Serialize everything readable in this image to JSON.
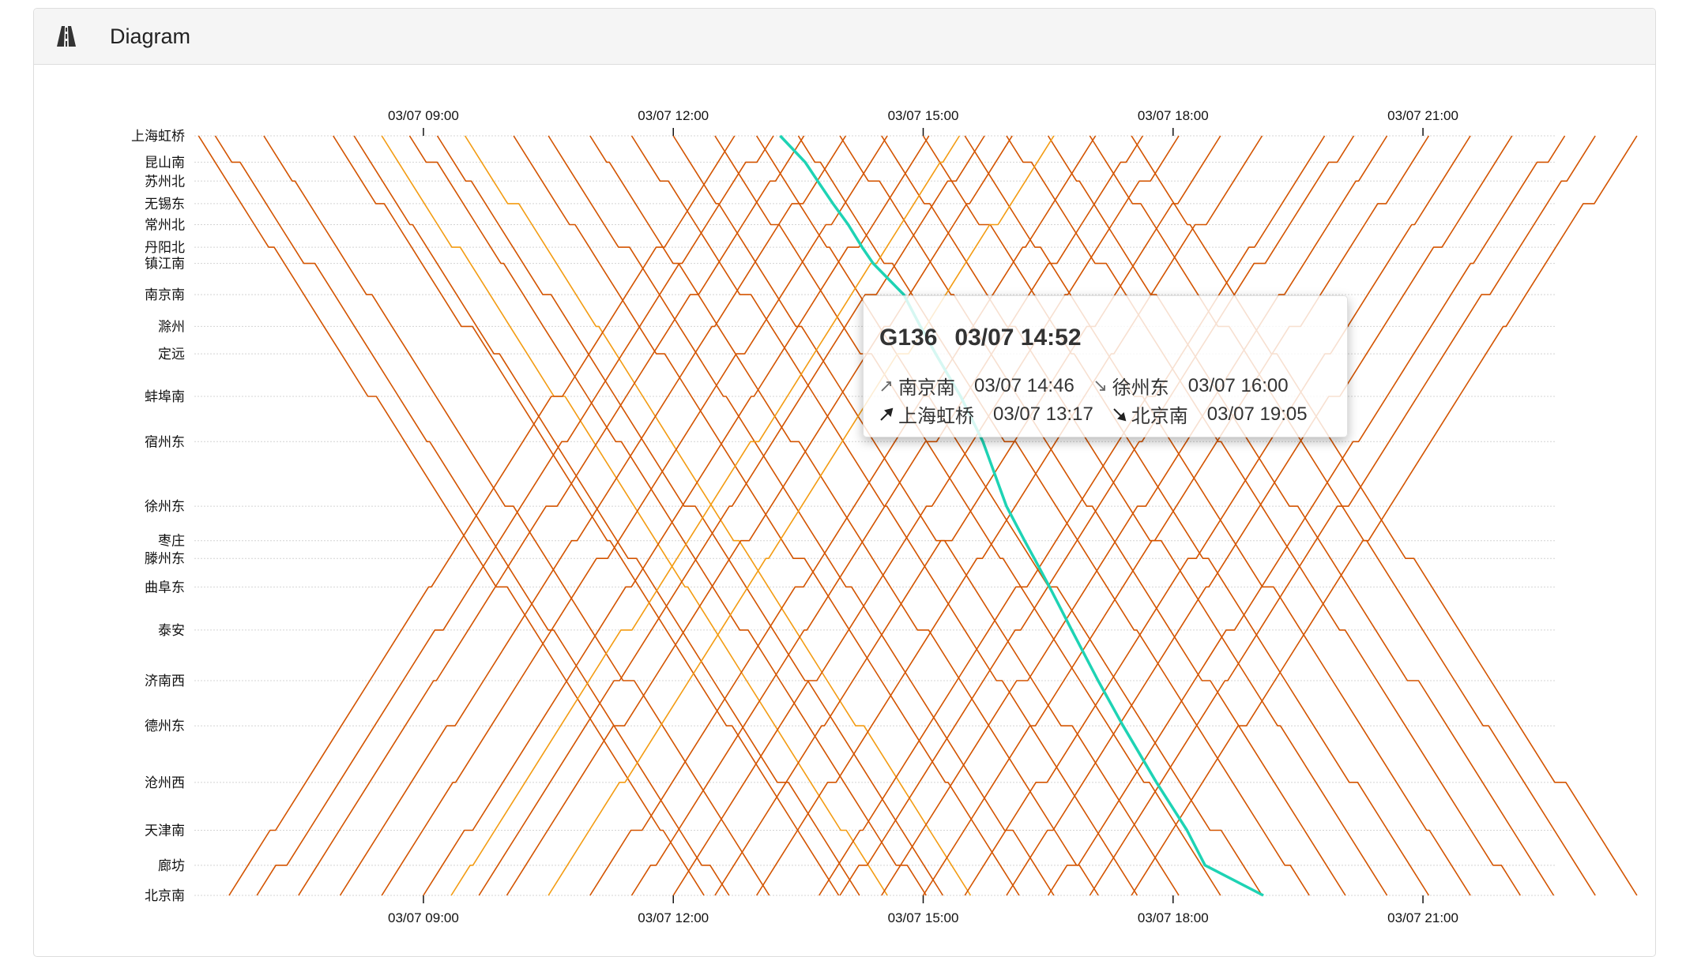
{
  "panel": {
    "title": "Diagram",
    "icon": "road-icon"
  },
  "tooltip": {
    "train": "G136",
    "time": "03/07 14:52",
    "prev_station": "南京南",
    "prev_time": "03/07 14:46",
    "next_station": "徐州东",
    "next_time": "03/07 16:00",
    "origin_station": "上海虹桥",
    "origin_time": "03/07 13:17",
    "dest_station": "北京南",
    "dest_time": "03/07 19:05"
  },
  "chart_data": {
    "type": "line",
    "subtype": "train timetable diagram",
    "time_range": [
      "03/07 06:15",
      "03/07 22:35"
    ],
    "x_ticks": [
      "03/07 09:00",
      "03/07 12:00",
      "03/07 15:00",
      "03/07 18:00",
      "03/07 21:00"
    ],
    "x_tick_hours": [
      9,
      12,
      15,
      18,
      21
    ],
    "stations": [
      "上海虹桥",
      "昆山南",
      "苏州北",
      "无锡东",
      "常州北",
      "丹阳北",
      "镇江南",
      "南京南",
      "滁州",
      "定远",
      "蚌埠南",
      "宿州东",
      "徐州东",
      "枣庄",
      "滕州东",
      "曲阜东",
      "泰安",
      "济南西",
      "德州东",
      "沧州西",
      "天津南",
      "廊坊",
      "北京南"
    ],
    "station_km": [
      0,
      49,
      84,
      126,
      165,
      207,
      237,
      295,
      354,
      405,
      484,
      568,
      688,
      752,
      785,
      838,
      918,
      1012,
      1096,
      1201,
      1290,
      1355,
      1411
    ],
    "grid": true,
    "colors": {
      "normal": "#d35400",
      "alt": "#f39c12",
      "highlight": "#1ed3b4"
    },
    "highlighted_train": {
      "name": "G136",
      "direction": "northbound",
      "times": [
        "13:17",
        "13:35",
        "13:44",
        "13:55",
        "14:06",
        "14:16",
        "14:24",
        "14:46",
        "14:58",
        "15:09",
        "15:27",
        "15:43",
        "16:00",
        "16:13",
        "16:20",
        "16:31",
        "16:47",
        "17:06",
        "17:24",
        "17:48",
        "18:10",
        "18:23",
        "19:05"
      ]
    },
    "trains": [
      {
        "dir": "S",
        "dep": "06:18",
        "type": "normal"
      },
      {
        "dir": "S",
        "dep": "06:30",
        "type": "normal"
      },
      {
        "dir": "S",
        "dep": "07:05",
        "type": "normal"
      },
      {
        "dir": "S",
        "dep": "07:55",
        "type": "normal"
      },
      {
        "dir": "S",
        "dep": "08:10",
        "type": "normal"
      },
      {
        "dir": "S",
        "dep": "08:30",
        "type": "alt"
      },
      {
        "dir": "S",
        "dep": "08:50",
        "type": "normal"
      },
      {
        "dir": "S",
        "dep": "09:10",
        "type": "normal"
      },
      {
        "dir": "S",
        "dep": "09:30",
        "type": "alt"
      },
      {
        "dir": "S",
        "dep": "10:05",
        "type": "normal"
      },
      {
        "dir": "S",
        "dep": "10:30",
        "type": "normal"
      },
      {
        "dir": "S",
        "dep": "11:00",
        "type": "normal"
      },
      {
        "dir": "S",
        "dep": "11:30",
        "type": "normal"
      },
      {
        "dir": "S",
        "dep": "12:00",
        "type": "normal"
      },
      {
        "dir": "S",
        "dep": "12:30",
        "type": "normal"
      },
      {
        "dir": "S",
        "dep": "13:00",
        "type": "normal"
      },
      {
        "dir": "S",
        "dep": "13:30",
        "type": "normal"
      },
      {
        "dir": "S",
        "dep": "14:00",
        "type": "normal"
      },
      {
        "dir": "S",
        "dep": "14:30",
        "type": "normal"
      },
      {
        "dir": "S",
        "dep": "15:00",
        "type": "normal"
      },
      {
        "dir": "S",
        "dep": "15:30",
        "type": "normal"
      },
      {
        "dir": "S",
        "dep": "16:00",
        "type": "normal"
      },
      {
        "dir": "S",
        "dep": "16:30",
        "type": "normal"
      },
      {
        "dir": "S",
        "dep": "17:00",
        "type": "normal"
      },
      {
        "dir": "S",
        "dep": "17:30",
        "type": "normal"
      },
      {
        "dir": "N",
        "dep": "06:40",
        "type": "normal"
      },
      {
        "dir": "N",
        "dep": "07:00",
        "type": "normal"
      },
      {
        "dir": "N",
        "dep": "07:30",
        "type": "normal"
      },
      {
        "dir": "N",
        "dep": "08:00",
        "type": "normal"
      },
      {
        "dir": "N",
        "dep": "08:30",
        "type": "normal"
      },
      {
        "dir": "N",
        "dep": "09:00",
        "type": "normal"
      },
      {
        "dir": "N",
        "dep": "09:20",
        "type": "alt"
      },
      {
        "dir": "N",
        "dep": "09:40",
        "type": "normal"
      },
      {
        "dir": "N",
        "dep": "10:00",
        "type": "normal"
      },
      {
        "dir": "N",
        "dep": "10:30",
        "type": "alt"
      },
      {
        "dir": "N",
        "dep": "11:00",
        "type": "normal"
      },
      {
        "dir": "N",
        "dep": "11:30",
        "type": "normal"
      },
      {
        "dir": "N",
        "dep": "12:00",
        "type": "normal"
      },
      {
        "dir": "N",
        "dep": "12:30",
        "type": "normal"
      },
      {
        "dir": "N",
        "dep": "13:00",
        "type": "normal"
      },
      {
        "dir": "N",
        "dep": "13:45",
        "type": "normal"
      },
      {
        "dir": "N",
        "dep": "14:00",
        "type": "normal"
      },
      {
        "dir": "N",
        "dep": "14:30",
        "type": "normal"
      },
      {
        "dir": "N",
        "dep": "15:00",
        "type": "normal"
      },
      {
        "dir": "N",
        "dep": "15:30",
        "type": "normal"
      },
      {
        "dir": "N",
        "dep": "16:00",
        "type": "normal"
      },
      {
        "dir": "N",
        "dep": "16:30",
        "type": "normal"
      },
      {
        "dir": "N",
        "dep": "17:00",
        "type": "normal"
      },
      {
        "dir": "N",
        "dep": "17:30",
        "type": "normal"
      }
    ]
  }
}
